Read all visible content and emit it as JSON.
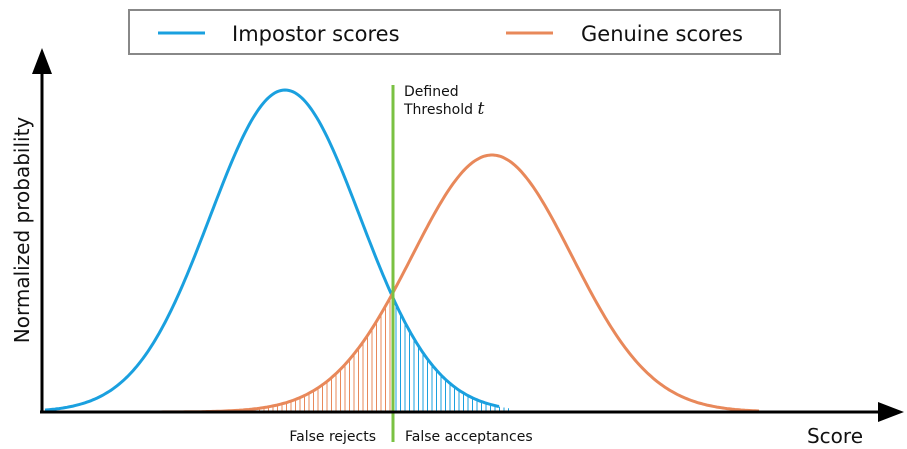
{
  "legend": {
    "items": [
      "Impostor scores",
      "Genuine scores"
    ]
  },
  "axes": {
    "y_label": "Normalized probability",
    "x_label": "Score"
  },
  "threshold": {
    "line1": "Defined",
    "line2": "Threshold",
    "symbol": "t"
  },
  "regions": {
    "left": "False rejects",
    "right": "False acceptances"
  }
}
